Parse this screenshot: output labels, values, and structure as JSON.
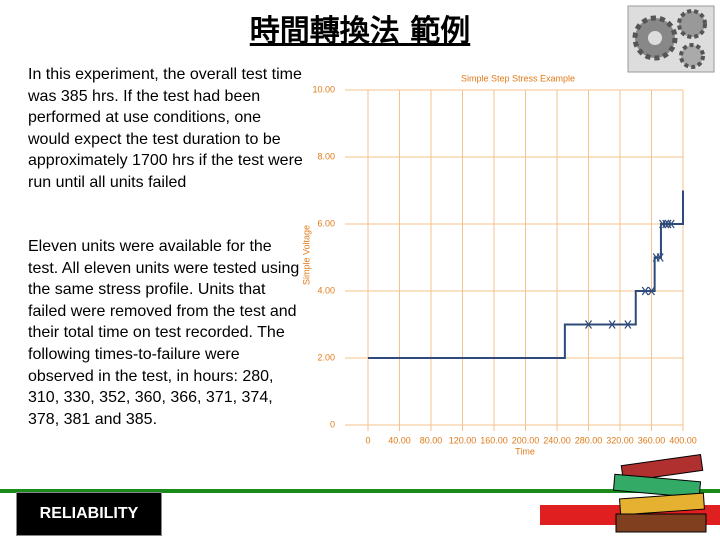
{
  "header": {
    "title": "時間轉換法 範例"
  },
  "paragraphs": [
    "In this experiment, the overall test time was 385 hrs. If the test had been performed at use conditions, one would expect the test duration to be approximately 1700 hrs if the test were run until all units failed",
    "Eleven units were available for the test. All eleven units were tested using the same stress profile. Units that failed were removed from the test and their total time on test recorded. The following times-to-failure were observed in the test, in hours: 280, 310, 330, 352, 360, 366, 371, 374, 378, 381 and 385."
  ],
  "footer": {
    "label": "RELIABILITY"
  },
  "chart_data": {
    "type": "line",
    "title": "Simple Step Stress Example",
    "x_label": "Time",
    "y_label": "Simple Voltage",
    "xlim": [
      0,
      400
    ],
    "ylim": [
      0,
      10
    ],
    "xticks": [
      0,
      {
        "value": 40,
        "label": "40.00"
      },
      {
        "value": 80,
        "label": "80.00"
      },
      {
        "value": 120,
        "label": "120.00"
      },
      {
        "value": 160,
        "label": "160.00"
      },
      {
        "value": 200,
        "label": "200.00"
      },
      {
        "value": 240,
        "label": "240.00"
      },
      {
        "value": 280,
        "label": "280.00"
      },
      {
        "value": 320,
        "label": "320.00"
      },
      {
        "value": 360,
        "label": "360.00"
      },
      {
        "value": 400,
        "label": "400.00"
      }
    ],
    "yticks": [
      0,
      {
        "value": 2,
        "label": "2.00"
      },
      {
        "value": 4,
        "label": "4.00"
      },
      {
        "value": 6,
        "label": "6.00"
      },
      {
        "value": 8,
        "label": "8.00"
      },
      {
        "value": 10,
        "label": "10.00"
      }
    ],
    "grid": true,
    "grid_color": "#f5c28a",
    "line_color": "#2e4a7a",
    "marker_color": "#2e4a7a",
    "text_color": "#e07b1a",
    "step": {
      "x": [
        0,
        250,
        250,
        340,
        340,
        364,
        364,
        372,
        372,
        400,
        400
      ],
      "y": [
        2,
        2,
        3,
        3,
        4,
        4,
        5,
        5,
        6,
        6,
        7
      ]
    },
    "failures": {
      "x": [
        280,
        310,
        330,
        352,
        360,
        366,
        371,
        374,
        378,
        381,
        385
      ],
      "y": [
        3,
        3,
        3,
        4,
        4,
        5,
        5,
        6,
        6,
        6,
        6
      ]
    }
  }
}
